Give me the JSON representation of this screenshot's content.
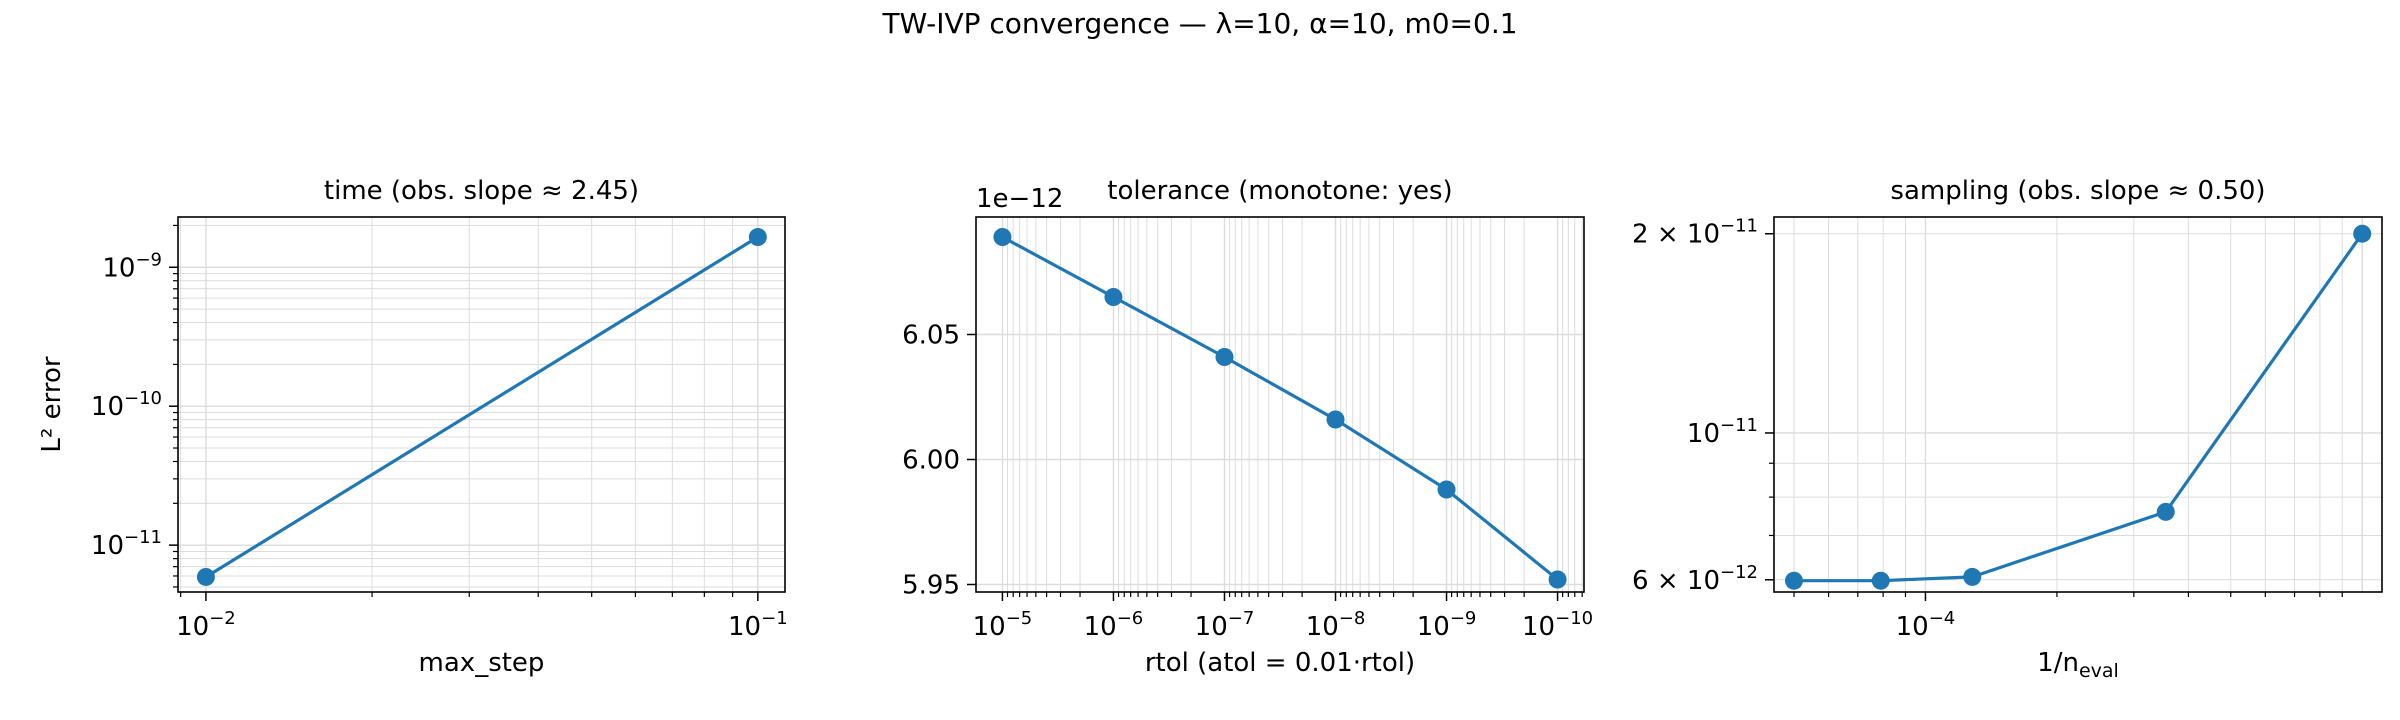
{
  "figure": {
    "suptitle": "TW-IVP convergence — λ=10, α=10, m0=0.1"
  },
  "colors": {
    "line": "#1f77b4",
    "grid": "#dcdcdc",
    "axis": "#000000"
  },
  "chart_data": [
    {
      "type": "line",
      "title": "time (obs. slope ≈ 2.45)",
      "xlabel": "max_step",
      "ylabel": "L² error",
      "xscale": "log",
      "yscale": "log",
      "xlim": [
        0.0089,
        0.112
      ],
      "ylim": [
        4.6e-12,
        2.3e-09
      ],
      "xticks": [
        {
          "v": 0.01,
          "base": "10",
          "exp": "−2"
        },
        {
          "v": 0.1,
          "base": "10",
          "exp": "−1"
        }
      ],
      "yticks": [
        {
          "v": 1e-09,
          "base": "10",
          "exp": "−9"
        },
        {
          "v": 1e-10,
          "base": "10",
          "exp": "−10"
        },
        {
          "v": 1e-11,
          "base": "10",
          "exp": "−11"
        }
      ],
      "grid": true,
      "series": [
        {
          "x": [
            0.01,
            0.1
          ],
          "y": [
            5.9e-12,
            1.65e-09
          ]
        }
      ]
    },
    {
      "type": "line",
      "title": "tolerance (monotone: yes)",
      "xlabel": "rtol (atol = 0.01·rtol)",
      "ylabel": "",
      "offset_label": "1e−12",
      "xscale": "log",
      "xinverted": true,
      "yscale": "linear",
      "xlim": [
        1.73e-05,
        5.78e-11
      ],
      "ylim": [
        5.947,
        6.097
      ],
      "xticks": [
        {
          "v": 1e-05,
          "base": "10",
          "exp": "−5"
        },
        {
          "v": 1e-06,
          "base": "10",
          "exp": "−6"
        },
        {
          "v": 1e-07,
          "base": "10",
          "exp": "−7"
        },
        {
          "v": 1e-08,
          "base": "10",
          "exp": "−8"
        },
        {
          "v": 1e-09,
          "base": "10",
          "exp": "−9"
        },
        {
          "v": 1e-10,
          "base": "10",
          "exp": "−10"
        }
      ],
      "yticks": [
        {
          "v": 5.95,
          "label": "5.95"
        },
        {
          "v": 6.0,
          "label": "6.00"
        },
        {
          "v": 6.05,
          "label": "6.05"
        }
      ],
      "grid": true,
      "series": [
        {
          "x": [
            1e-05,
            1e-06,
            1e-07,
            1e-08,
            1e-09,
            1e-10
          ],
          "y": [
            6.089,
            6.065,
            6.041,
            6.016,
            5.988,
            5.952
          ]
        }
      ]
    },
    {
      "type": "line",
      "title": "sampling (obs. slope ≈ 0.50)",
      "xlabel": "1/n",
      "xlabel_sub": "eval",
      "ylabel": "",
      "xscale": "log",
      "yscale": "log",
      "xlim": [
        4.5e-05,
        0.00111
      ],
      "ylim": [
        5.75e-12,
        2.12e-11
      ],
      "xticks": [
        {
          "v": 0.0001,
          "base": "10",
          "exp": "−4"
        }
      ],
      "yticks": [
        {
          "v": 2e-11,
          "base": "2 × 10",
          "exp": "−11"
        },
        {
          "v": 1e-11,
          "base": "10",
          "exp": "−11"
        },
        {
          "v": 6e-12,
          "base": "6 × 10",
          "exp": "−12"
        }
      ],
      "grid": true,
      "series": [
        {
          "x": [
            5e-05,
            7.9e-05,
            0.000128,
            0.000355,
            0.001
          ],
          "y": [
            5.98e-12,
            5.98e-12,
            6.06e-12,
            7.6e-12,
            2e-11
          ]
        }
      ]
    }
  ]
}
